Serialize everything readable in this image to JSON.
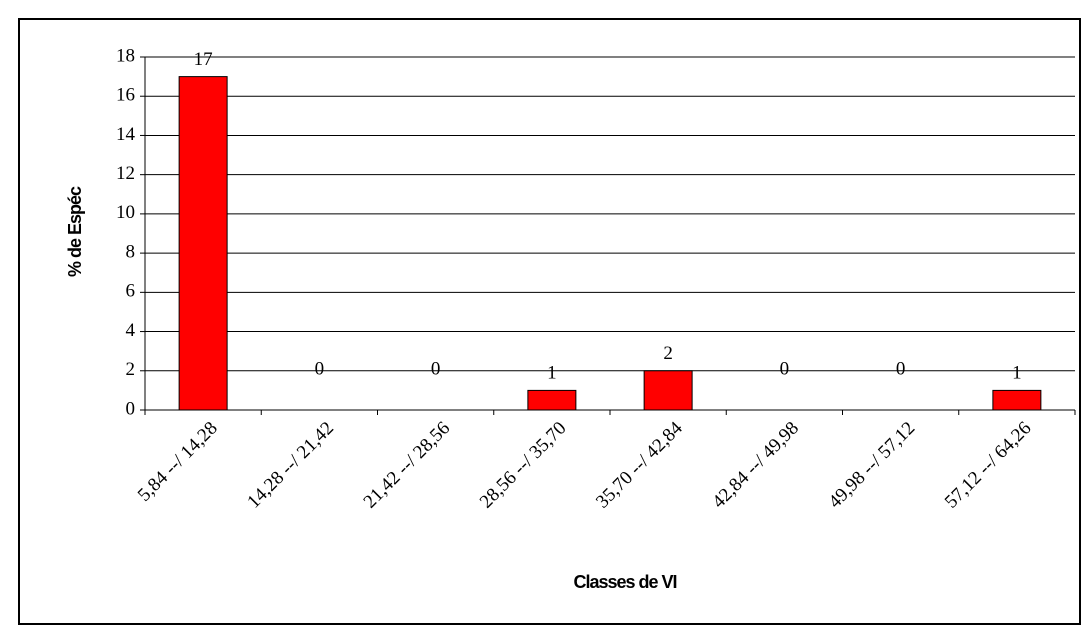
{
  "chart_data": {
    "type": "bar",
    "categories": [
      "5,84 --/ 14,28",
      "14,28 --/ 21,42",
      "21,42 --/ 28,56",
      "28,56 --/ 35,70",
      "35,70 --/ 42,84",
      "42,84 --/ 49,98",
      "49,98 --/ 57,12",
      "57,12 --/ 64,26"
    ],
    "values": [
      17,
      0,
      0,
      1,
      2,
      0,
      0,
      1
    ],
    "color": "#ff0000",
    "xlabel": "Classes de VI",
    "ylabel": "% de Espéc",
    "ylim": [
      0,
      18
    ],
    "yticks": [
      0,
      2,
      4,
      6,
      8,
      10,
      12,
      14,
      16,
      18
    ],
    "grid": true,
    "data_labels": true
  }
}
